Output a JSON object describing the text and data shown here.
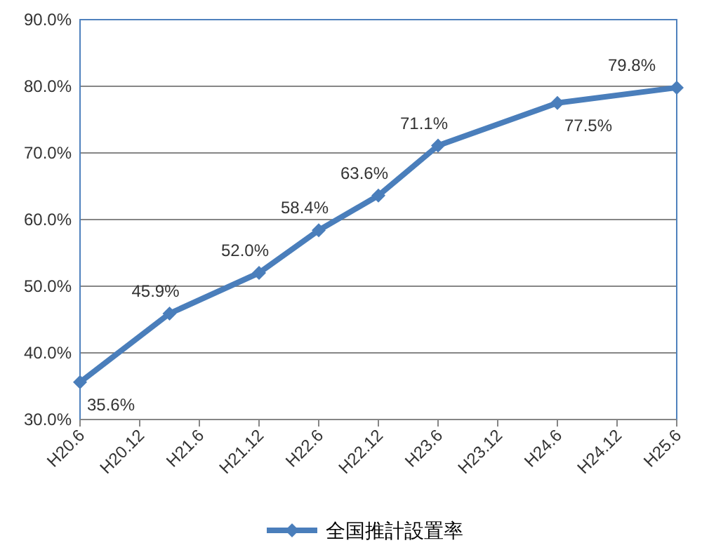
{
  "chart_data": {
    "type": "line",
    "x": [
      "2008-06",
      "2009-03",
      "2009-12",
      "2010-06",
      "2010-12",
      "2011-06",
      "2012-06",
      "2013-06"
    ],
    "series": [
      {
        "name": "全国推計設置率",
        "color": "#4a7ebb",
        "values": [
          35.6,
          45.9,
          52.0,
          58.4,
          63.6,
          71.1,
          77.5,
          79.8
        ],
        "value_labels": [
          "35.6%",
          "45.9%",
          "52.0%",
          "58.4%",
          "63.6%",
          "71.1%",
          "77.5%",
          "79.8%"
        ]
      }
    ],
    "xlim": [
      "2008-06",
      "2013-06"
    ],
    "xticks": [
      {
        "value": "2008-06",
        "label": "H20.6"
      },
      {
        "value": "2008-12",
        "label": "H20.12"
      },
      {
        "value": "2009-06",
        "label": "H21.6"
      },
      {
        "value": "2009-12",
        "label": "H21.12"
      },
      {
        "value": "2010-06",
        "label": "H22.6"
      },
      {
        "value": "2010-12",
        "label": "H22.12"
      },
      {
        "value": "2011-06",
        "label": "H23.6"
      },
      {
        "value": "2011-12",
        "label": "H23.12"
      },
      {
        "value": "2012-06",
        "label": "H24.6"
      },
      {
        "value": "2012-12",
        "label": "H24.12"
      },
      {
        "value": "2013-06",
        "label": "H25.6"
      }
    ],
    "ylim": [
      30,
      90
    ],
    "yticks": [
      {
        "value": 30,
        "label": "30.0%"
      },
      {
        "value": 40,
        "label": "40.0%"
      },
      {
        "value": 50,
        "label": "50.0%"
      },
      {
        "value": 60,
        "label": "60.0%"
      },
      {
        "value": 70,
        "label": "70.0%"
      },
      {
        "value": 80,
        "label": "80.0%"
      },
      {
        "value": 90,
        "label": "90.0%"
      }
    ],
    "grid": "y",
    "legend": "bottom",
    "marker": "diamond",
    "line_style": "solid"
  }
}
